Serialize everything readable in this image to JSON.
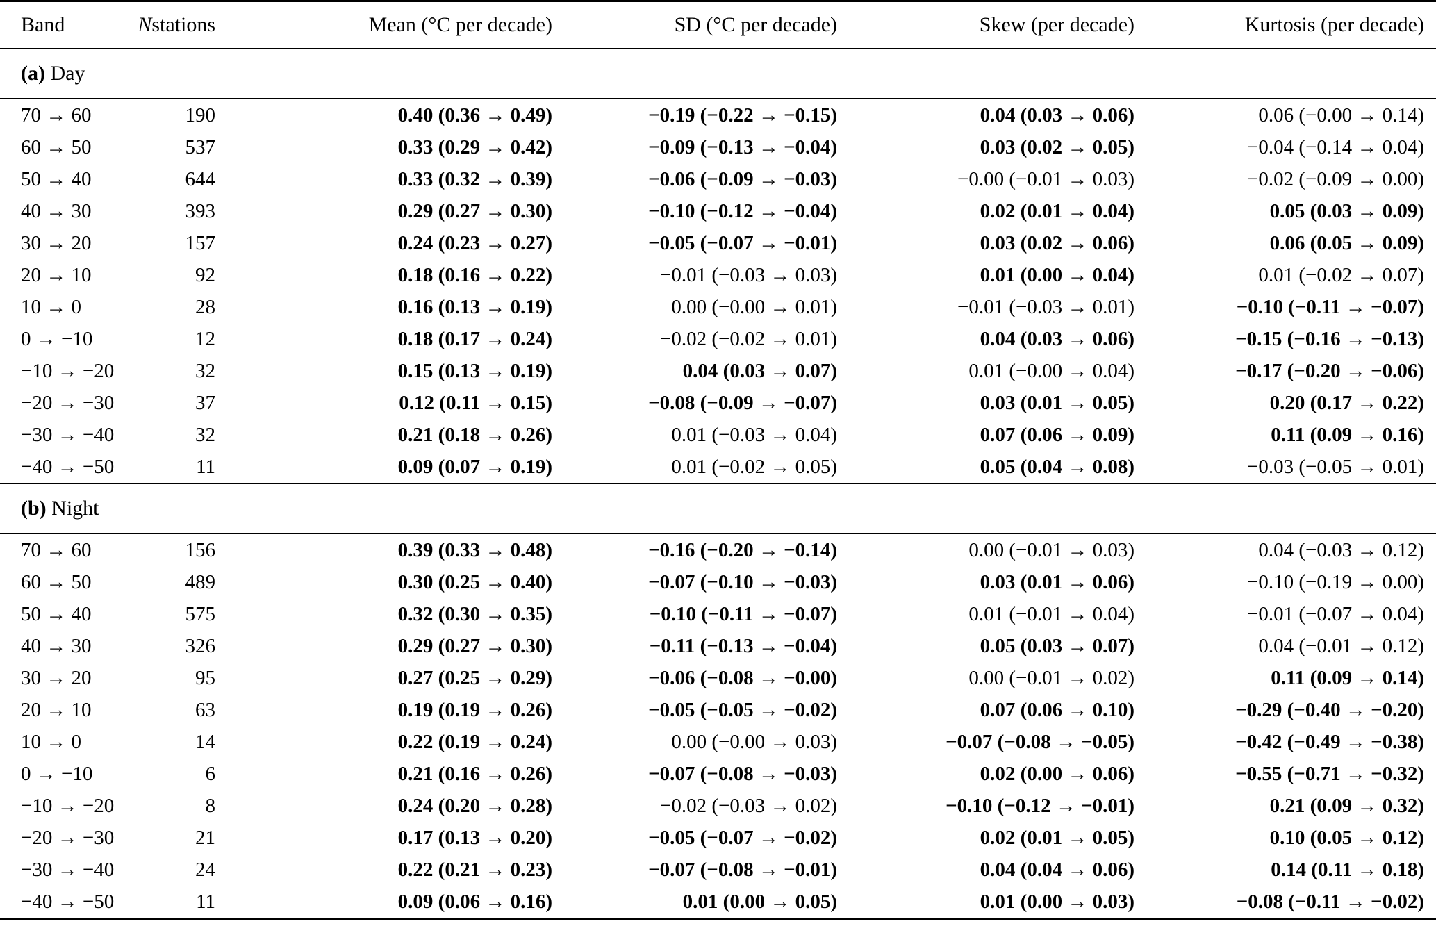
{
  "header": {
    "band": "Band",
    "n_italic": "N",
    "n_rest": " stations",
    "mean": "Mean (°C per decade)",
    "sd": "SD (°C per decade)",
    "skew": "Skew (per decade)",
    "kurtosis": "Kurtosis (per decade)"
  },
  "sections": [
    {
      "prefix": "(a)",
      "name": "Day",
      "rows": [
        {
          "band": "70 → 60",
          "n": "190",
          "mean": {
            "v": "0.40 (0.36 → 0.49)",
            "bold": true
          },
          "sd": {
            "v": "−0.19 (−0.22 → −0.15)",
            "bold": true
          },
          "skew": {
            "v": "0.04 (0.03 → 0.06)",
            "bold": true
          },
          "kurtosis": {
            "v": "0.06 (−0.00 → 0.14)",
            "bold": false
          }
        },
        {
          "band": "60 → 50",
          "n": "537",
          "mean": {
            "v": "0.33 (0.29 → 0.42)",
            "bold": true
          },
          "sd": {
            "v": "−0.09 (−0.13 → −0.04)",
            "bold": true
          },
          "skew": {
            "v": "0.03 (0.02 → 0.05)",
            "bold": true
          },
          "kurtosis": {
            "v": "−0.04 (−0.14 → 0.04)",
            "bold": false
          }
        },
        {
          "band": "50 → 40",
          "n": "644",
          "mean": {
            "v": "0.33 (0.32 → 0.39)",
            "bold": true
          },
          "sd": {
            "v": "−0.06 (−0.09 → −0.03)",
            "bold": true
          },
          "skew": {
            "v": "−0.00 (−0.01 → 0.03)",
            "bold": false
          },
          "kurtosis": {
            "v": "−0.02 (−0.09 → 0.00)",
            "bold": false
          }
        },
        {
          "band": "40 → 30",
          "n": "393",
          "mean": {
            "v": "0.29 (0.27 → 0.30)",
            "bold": true
          },
          "sd": {
            "v": "−0.10 (−0.12 → −0.04)",
            "bold": true
          },
          "skew": {
            "v": "0.02 (0.01 → 0.04)",
            "bold": true
          },
          "kurtosis": {
            "v": "0.05 (0.03 → 0.09)",
            "bold": true
          }
        },
        {
          "band": "30 → 20",
          "n": "157",
          "mean": {
            "v": "0.24 (0.23 → 0.27)",
            "bold": true
          },
          "sd": {
            "v": "−0.05 (−0.07 → −0.01)",
            "bold": true
          },
          "skew": {
            "v": "0.03 (0.02 → 0.06)",
            "bold": true
          },
          "kurtosis": {
            "v": "0.06 (0.05 → 0.09)",
            "bold": true
          }
        },
        {
          "band": "20 → 10",
          "n": "92",
          "mean": {
            "v": "0.18 (0.16 → 0.22)",
            "bold": true
          },
          "sd": {
            "v": "−0.01 (−0.03 → 0.03)",
            "bold": false
          },
          "skew": {
            "v": "0.01 (0.00 → 0.04)",
            "bold": true
          },
          "kurtosis": {
            "v": "0.01 (−0.02 → 0.07)",
            "bold": false
          }
        },
        {
          "band": "10 → 0",
          "n": "28",
          "mean": {
            "v": "0.16 (0.13 → 0.19)",
            "bold": true
          },
          "sd": {
            "v": "0.00 (−0.00 → 0.01)",
            "bold": false
          },
          "skew": {
            "v": "−0.01 (−0.03 → 0.01)",
            "bold": false
          },
          "kurtosis": {
            "v": "−0.10 (−0.11 → −0.07)",
            "bold": true
          }
        },
        {
          "band": "0 → −10",
          "n": "12",
          "mean": {
            "v": "0.18 (0.17 → 0.24)",
            "bold": true
          },
          "sd": {
            "v": "−0.02 (−0.02 → 0.01)",
            "bold": false
          },
          "skew": {
            "v": "0.04 (0.03 → 0.06)",
            "bold": true
          },
          "kurtosis": {
            "v": "−0.15 (−0.16 → −0.13)",
            "bold": true
          }
        },
        {
          "band": "−10 → −20",
          "n": "32",
          "mean": {
            "v": "0.15 (0.13 → 0.19)",
            "bold": true
          },
          "sd": {
            "v": "0.04 (0.03 → 0.07)",
            "bold": true
          },
          "skew": {
            "v": "0.01 (−0.00 → 0.04)",
            "bold": false
          },
          "kurtosis": {
            "v": "−0.17 (−0.20 → −0.06)",
            "bold": true
          }
        },
        {
          "band": "−20 → −30",
          "n": "37",
          "mean": {
            "v": "0.12 (0.11 → 0.15)",
            "bold": true
          },
          "sd": {
            "v": "−0.08 (−0.09 → −0.07)",
            "bold": true
          },
          "skew": {
            "v": "0.03 (0.01 → 0.05)",
            "bold": true
          },
          "kurtosis": {
            "v": "0.20 (0.17 → 0.22)",
            "bold": true
          }
        },
        {
          "band": "−30 → −40",
          "n": "32",
          "mean": {
            "v": "0.21 (0.18 → 0.26)",
            "bold": true
          },
          "sd": {
            "v": "0.01 (−0.03 → 0.04)",
            "bold": false
          },
          "skew": {
            "v": "0.07 (0.06 → 0.09)",
            "bold": true
          },
          "kurtosis": {
            "v": "0.11 (0.09 → 0.16)",
            "bold": true
          }
        },
        {
          "band": "−40 → −50",
          "n": "11",
          "mean": {
            "v": "0.09 (0.07 → 0.19)",
            "bold": true
          },
          "sd": {
            "v": "0.01 (−0.02 → 0.05)",
            "bold": false
          },
          "skew": {
            "v": "0.05 (0.04 → 0.08)",
            "bold": true
          },
          "kurtosis": {
            "v": "−0.03 (−0.05 → 0.01)",
            "bold": false
          }
        }
      ]
    },
    {
      "prefix": "(b)",
      "name": "Night",
      "rows": [
        {
          "band": "70 → 60",
          "n": "156",
          "mean": {
            "v": "0.39 (0.33 → 0.48)",
            "bold": true
          },
          "sd": {
            "v": "−0.16 (−0.20 → −0.14)",
            "bold": true
          },
          "skew": {
            "v": "0.00 (−0.01 → 0.03)",
            "bold": false
          },
          "kurtosis": {
            "v": "0.04 (−0.03 → 0.12)",
            "bold": false
          }
        },
        {
          "band": "60 → 50",
          "n": "489",
          "mean": {
            "v": "0.30 (0.25 → 0.40)",
            "bold": true
          },
          "sd": {
            "v": "−0.07 (−0.10 → −0.03)",
            "bold": true
          },
          "skew": {
            "v": "0.03 (0.01 → 0.06)",
            "bold": true
          },
          "kurtosis": {
            "v": "−0.10 (−0.19 → 0.00)",
            "bold": false
          }
        },
        {
          "band": "50 → 40",
          "n": "575",
          "mean": {
            "v": "0.32 (0.30 → 0.35)",
            "bold": true
          },
          "sd": {
            "v": "−0.10 (−0.11 → −0.07)",
            "bold": true
          },
          "skew": {
            "v": "0.01 (−0.01 → 0.04)",
            "bold": false
          },
          "kurtosis": {
            "v": "−0.01 (−0.07 → 0.04)",
            "bold": false
          }
        },
        {
          "band": "40 → 30",
          "n": "326",
          "mean": {
            "v": "0.29 (0.27 → 0.30)",
            "bold": true
          },
          "sd": {
            "v": "−0.11 (−0.13 → −0.04)",
            "bold": true
          },
          "skew": {
            "v": "0.05 (0.03 → 0.07)",
            "bold": true
          },
          "kurtosis": {
            "v": "0.04 (−0.01 → 0.12)",
            "bold": false
          }
        },
        {
          "band": "30 → 20",
          "n": "95",
          "mean": {
            "v": "0.27 (0.25 → 0.29)",
            "bold": true
          },
          "sd": {
            "v": "−0.06 (−0.08 → −0.00)",
            "bold": true
          },
          "skew": {
            "v": "0.00 (−0.01 → 0.02)",
            "bold": false
          },
          "kurtosis": {
            "v": "0.11 (0.09 → 0.14)",
            "bold": true
          }
        },
        {
          "band": "20 → 10",
          "n": "63",
          "mean": {
            "v": "0.19 (0.19 → 0.26)",
            "bold": true
          },
          "sd": {
            "v": "−0.05 (−0.05 → −0.02)",
            "bold": true
          },
          "skew": {
            "v": "0.07 (0.06 → 0.10)",
            "bold": true
          },
          "kurtosis": {
            "v": "−0.29 (−0.40 → −0.20)",
            "bold": true
          }
        },
        {
          "band": "10 → 0",
          "n": "14",
          "mean": {
            "v": "0.22 (0.19 → 0.24)",
            "bold": true
          },
          "sd": {
            "v": "0.00 (−0.00 → 0.03)",
            "bold": false
          },
          "skew": {
            "v": "−0.07 (−0.08 → −0.05)",
            "bold": true
          },
          "kurtosis": {
            "v": "−0.42 (−0.49 → −0.38)",
            "bold": true
          }
        },
        {
          "band": "0 → −10",
          "n": "6",
          "mean": {
            "v": "0.21 (0.16 → 0.26)",
            "bold": true
          },
          "sd": {
            "v": "−0.07 (−0.08 → −0.03)",
            "bold": true
          },
          "skew": {
            "v": "0.02 (0.00 → 0.06)",
            "bold": true
          },
          "kurtosis": {
            "v": "−0.55 (−0.71 → −0.32)",
            "bold": true
          }
        },
        {
          "band": "−10 → −20",
          "n": "8",
          "mean": {
            "v": "0.24 (0.20 → 0.28)",
            "bold": true
          },
          "sd": {
            "v": "−0.02 (−0.03 → 0.02)",
            "bold": false
          },
          "skew": {
            "v": "−0.10 (−0.12 → −0.01)",
            "bold": true
          },
          "kurtosis": {
            "v": "0.21 (0.09 → 0.32)",
            "bold": true
          }
        },
        {
          "band": "−20 → −30",
          "n": "21",
          "mean": {
            "v": "0.17 (0.13 → 0.20)",
            "bold": true
          },
          "sd": {
            "v": "−0.05 (−0.07 → −0.02)",
            "bold": true
          },
          "skew": {
            "v": "0.02 (0.01 → 0.05)",
            "bold": true
          },
          "kurtosis": {
            "v": "0.10 (0.05 → 0.12)",
            "bold": true
          }
        },
        {
          "band": "−30 → −40",
          "n": "24",
          "mean": {
            "v": "0.22 (0.21 → 0.23)",
            "bold": true
          },
          "sd": {
            "v": "−0.07 (−0.08 → −0.01)",
            "bold": true
          },
          "skew": {
            "v": "0.04 (0.04 → 0.06)",
            "bold": true
          },
          "kurtosis": {
            "v": "0.14 (0.11 → 0.18)",
            "bold": true
          }
        },
        {
          "band": "−40 → −50",
          "n": "11",
          "mean": {
            "v": "0.09 (0.06 → 0.16)",
            "bold": true
          },
          "sd": {
            "v": "0.01 (0.00 → 0.05)",
            "bold": true
          },
          "skew": {
            "v": "0.01 (0.00 → 0.03)",
            "bold": true
          },
          "kurtosis": {
            "v": "−0.08 (−0.11 → −0.02)",
            "bold": true
          }
        }
      ]
    }
  ]
}
